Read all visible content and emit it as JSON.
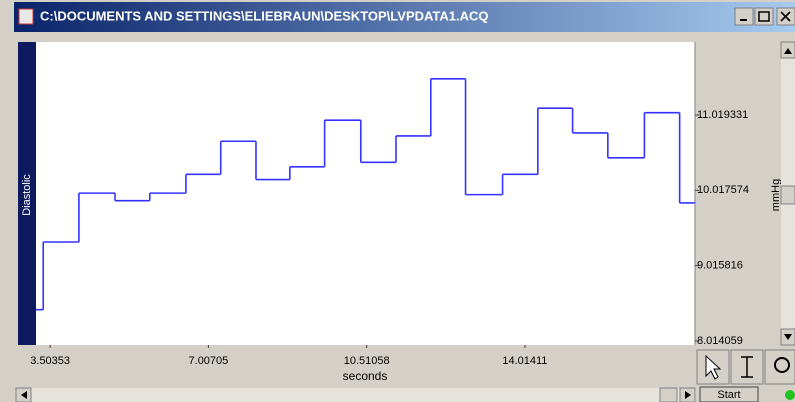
{
  "window": {
    "title": "C:\\DOCUMENTS AND SETTINGS\\ELIEBRAUN\\DESKTOP\\LVPDATA1.ACQ",
    "start_button": "Start"
  },
  "chart_data": {
    "type": "step",
    "channel_label": "Diastolic",
    "x_label": "seconds",
    "y_label": "mmHg",
    "color": "#3333ff",
    "x": [
      3.19,
      3.35,
      4.14,
      4.94,
      5.71,
      6.51,
      7.28,
      8.06,
      8.81,
      9.58,
      10.38,
      11.16,
      11.93,
      12.7,
      13.52,
      14.3,
      15.07,
      15.85,
      16.66,
      17.44
    ],
    "values": [
      8.43,
      9.33,
      9.98,
      9.88,
      9.98,
      10.23,
      10.67,
      10.16,
      10.33,
      10.95,
      10.39,
      10.74,
      11.5,
      9.96,
      10.23,
      11.11,
      10.78,
      10.45,
      11.05,
      9.85
    ],
    "xlim": [
      3.19,
      17.78
    ],
    "ylim": [
      7.96,
      11.99
    ],
    "xticks": [
      3.50353,
      7.00705,
      10.51058,
      14.01411
    ],
    "yticks": [
      8.014059,
      9.015816,
      10.017574,
      11.019331
    ]
  }
}
